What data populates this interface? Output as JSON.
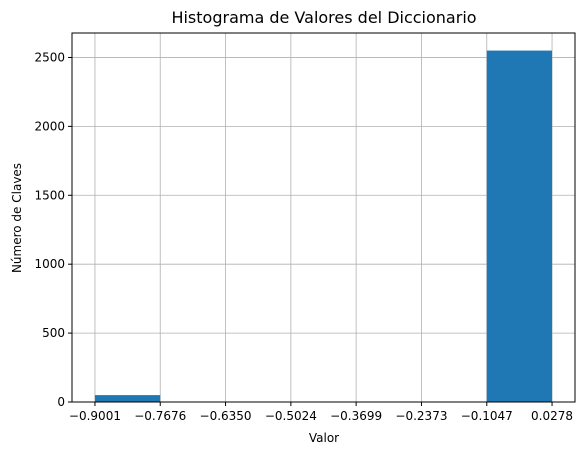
{
  "chart_data": {
    "type": "bar",
    "title": "Histograma de Valores del Diccionario",
    "xlabel": "Valor",
    "ylabel": "Número de Claves",
    "bins": [
      {
        "start": -0.9001,
        "end": -0.7676,
        "value": 50
      },
      {
        "start": -0.7676,
        "end": -0.635,
        "value": 0
      },
      {
        "start": -0.635,
        "end": -0.5024,
        "value": 0
      },
      {
        "start": -0.5024,
        "end": -0.3699,
        "value": 0
      },
      {
        "start": -0.3699,
        "end": -0.2373,
        "value": 0
      },
      {
        "start": -0.2373,
        "end": -0.1047,
        "value": 0
      },
      {
        "start": -0.1047,
        "end": 0.0278,
        "value": 2550
      }
    ],
    "xticks": [
      -0.9001,
      -0.7676,
      -0.635,
      -0.5024,
      -0.3699,
      -0.2373,
      -0.1047,
      0.0278
    ],
    "xtick_labels": [
      "−0.9001",
      "−0.7676",
      "−0.6350",
      "−0.5024",
      "−0.3699",
      "−0.2373",
      "−0.1047",
      "0.0278"
    ],
    "yticks": [
      0,
      500,
      1000,
      1500,
      2000,
      2500
    ],
    "ytick_labels": [
      "0",
      "500",
      "1000",
      "1500",
      "2000",
      "2500"
    ],
    "xlim": [
      -0.9467,
      0.0744
    ],
    "ylim": [
      0,
      2677.5
    ],
    "grid": true,
    "colors": {
      "bar": "#1f77b4",
      "grid": "#b0b0b0"
    }
  }
}
